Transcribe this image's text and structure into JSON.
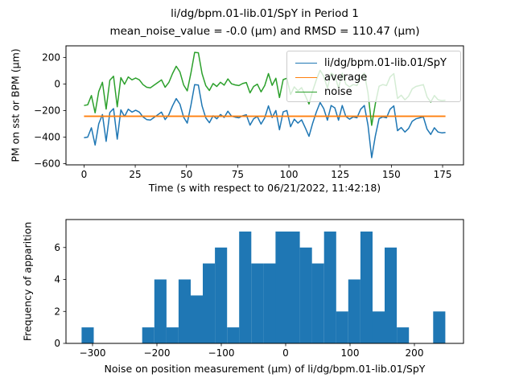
{
  "figure": {
    "title_line1": "li/dg/bpm.01-lib.01/SpY in Period 1",
    "title_line2": "mean_noise_value = -0.0 (μm) and RMSD = 110.47 (μm)",
    "background": "#ffffff",
    "stats": {
      "mean_noise_value": "-0.0",
      "rmsd": "110.47",
      "unit": "μm",
      "period": "1"
    }
  },
  "chart_data": [
    {
      "type": "line",
      "title": "li/dg/bpm.01-lib.01/SpY in Period 1",
      "xlabel": "Time (s with respect to 06/21/2022, 11:42:18)",
      "ylabel": "PM on sst or BPM (μm)",
      "xlim": [
        -8.8,
        185.2
      ],
      "ylim": [
        -609,
        287
      ],
      "xticks": [
        0,
        25,
        50,
        75,
        100,
        125,
        150,
        175
      ],
      "yticks": [
        200,
        0,
        -200,
        -400,
        -600
      ],
      "grid": false,
      "legend": {
        "position": "upper right",
        "entries": [
          {
            "label": "li/dg/bpm.01-lib.01/SpY",
            "color": "#1f77b4"
          },
          {
            "label": "average",
            "color": "#ff7f0e"
          },
          {
            "label": "noise",
            "color": "#2ca02c"
          }
        ]
      },
      "x": {
        "start": 0,
        "step": 1.8,
        "unit": "s"
      },
      "series": [
        {
          "name": "li/dg/bpm.01-lib.01/SpY",
          "color": "#1f77b4",
          "linewidth": 1.5,
          "values": [
            -405,
            -400,
            -330,
            -460,
            -300,
            -230,
            -432,
            -215,
            -185,
            -415,
            -195,
            -245,
            -190,
            -212,
            -198,
            -212,
            -248,
            -268,
            -272,
            -252,
            -232,
            -212,
            -268,
            -232,
            -165,
            -110,
            -152,
            -250,
            -295,
            -160,
            -5,
            -8,
            -165,
            -255,
            -292,
            -240,
            -262,
            -230,
            -252,
            -205,
            -242,
            -250,
            -255,
            -240,
            -232,
            -310,
            -262,
            -245,
            -302,
            -255,
            -165,
            -253,
            -200,
            -345,
            -210,
            -200,
            -322,
            -265,
            -295,
            -270,
            -330,
            -394,
            -295,
            -210,
            -140,
            -185,
            -273,
            -162,
            -180,
            -273,
            -162,
            -245,
            -265,
            -248,
            -255,
            -190,
            -162,
            -310,
            -555,
            -390,
            -260,
            -248,
            -255,
            -190,
            -165,
            -352,
            -328,
            -362,
            -335,
            -280,
            -262,
            -255,
            -248,
            -340,
            -380,
            -330,
            -362,
            -368,
            -365
          ]
        },
        {
          "name": "average",
          "color": "#ff7f0e",
          "linewidth": 1.5,
          "value": -243
        },
        {
          "name": "noise",
          "color": "#2ca02c",
          "linewidth": 1.5,
          "derived": "signal minus average"
        }
      ]
    },
    {
      "type": "bar",
      "kind": "histogram",
      "xlabel": "Noise on position measurement (μm) of li/dg/bpm.01-lib.01/SpY",
      "ylabel": "Frequency of apparition",
      "color": "#1f77b4",
      "bin_start": -317,
      "bin_width": 18.83,
      "counts": [
        1,
        0,
        0,
        0,
        0,
        1,
        4,
        1,
        4,
        3,
        5,
        6,
        1,
        7,
        5,
        5,
        7,
        7,
        6,
        5,
        7,
        2,
        4,
        7,
        2,
        6,
        1,
        0,
        0,
        2
      ],
      "xlim": [
        -341.25,
        276.25
      ],
      "ylim": [
        0,
        7.75
      ],
      "xticks": [
        -300,
        -200,
        -100,
        0,
        100,
        200
      ],
      "yticks": [
        0,
        2,
        4,
        6
      ],
      "grid": false
    }
  ]
}
